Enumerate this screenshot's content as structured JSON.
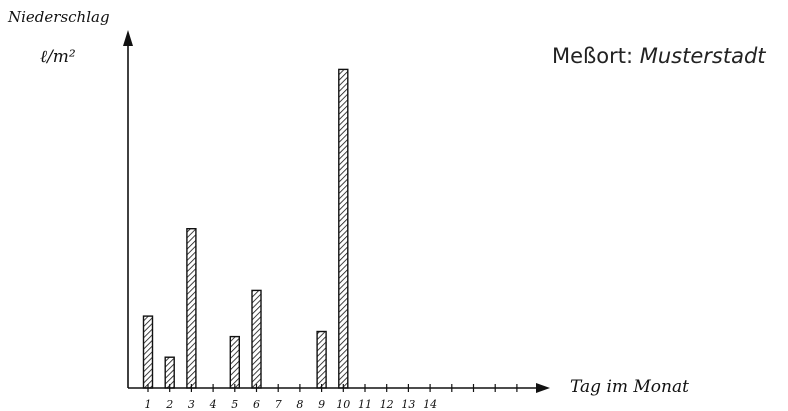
{
  "caption": {
    "label": "Meßort:",
    "place": "Musterstadt"
  },
  "chart_data": {
    "type": "bar",
    "ylabel": "Niederschlag",
    "yunit": "ℓ/m²",
    "xlabel": "Tag im Monat",
    "categories": [
      "1",
      "2",
      "3",
      "4",
      "5",
      "6",
      "7",
      "8",
      "9",
      "10",
      "11",
      "12",
      "13",
      "14"
    ],
    "values": [
      14,
      6,
      31,
      0,
      10,
      19,
      0,
      0,
      11,
      62,
      0,
      0,
      0,
      0
    ],
    "ylim": [
      0,
      65
    ],
    "grid": false,
    "bar_fill": "hatched",
    "color": "#111111"
  }
}
